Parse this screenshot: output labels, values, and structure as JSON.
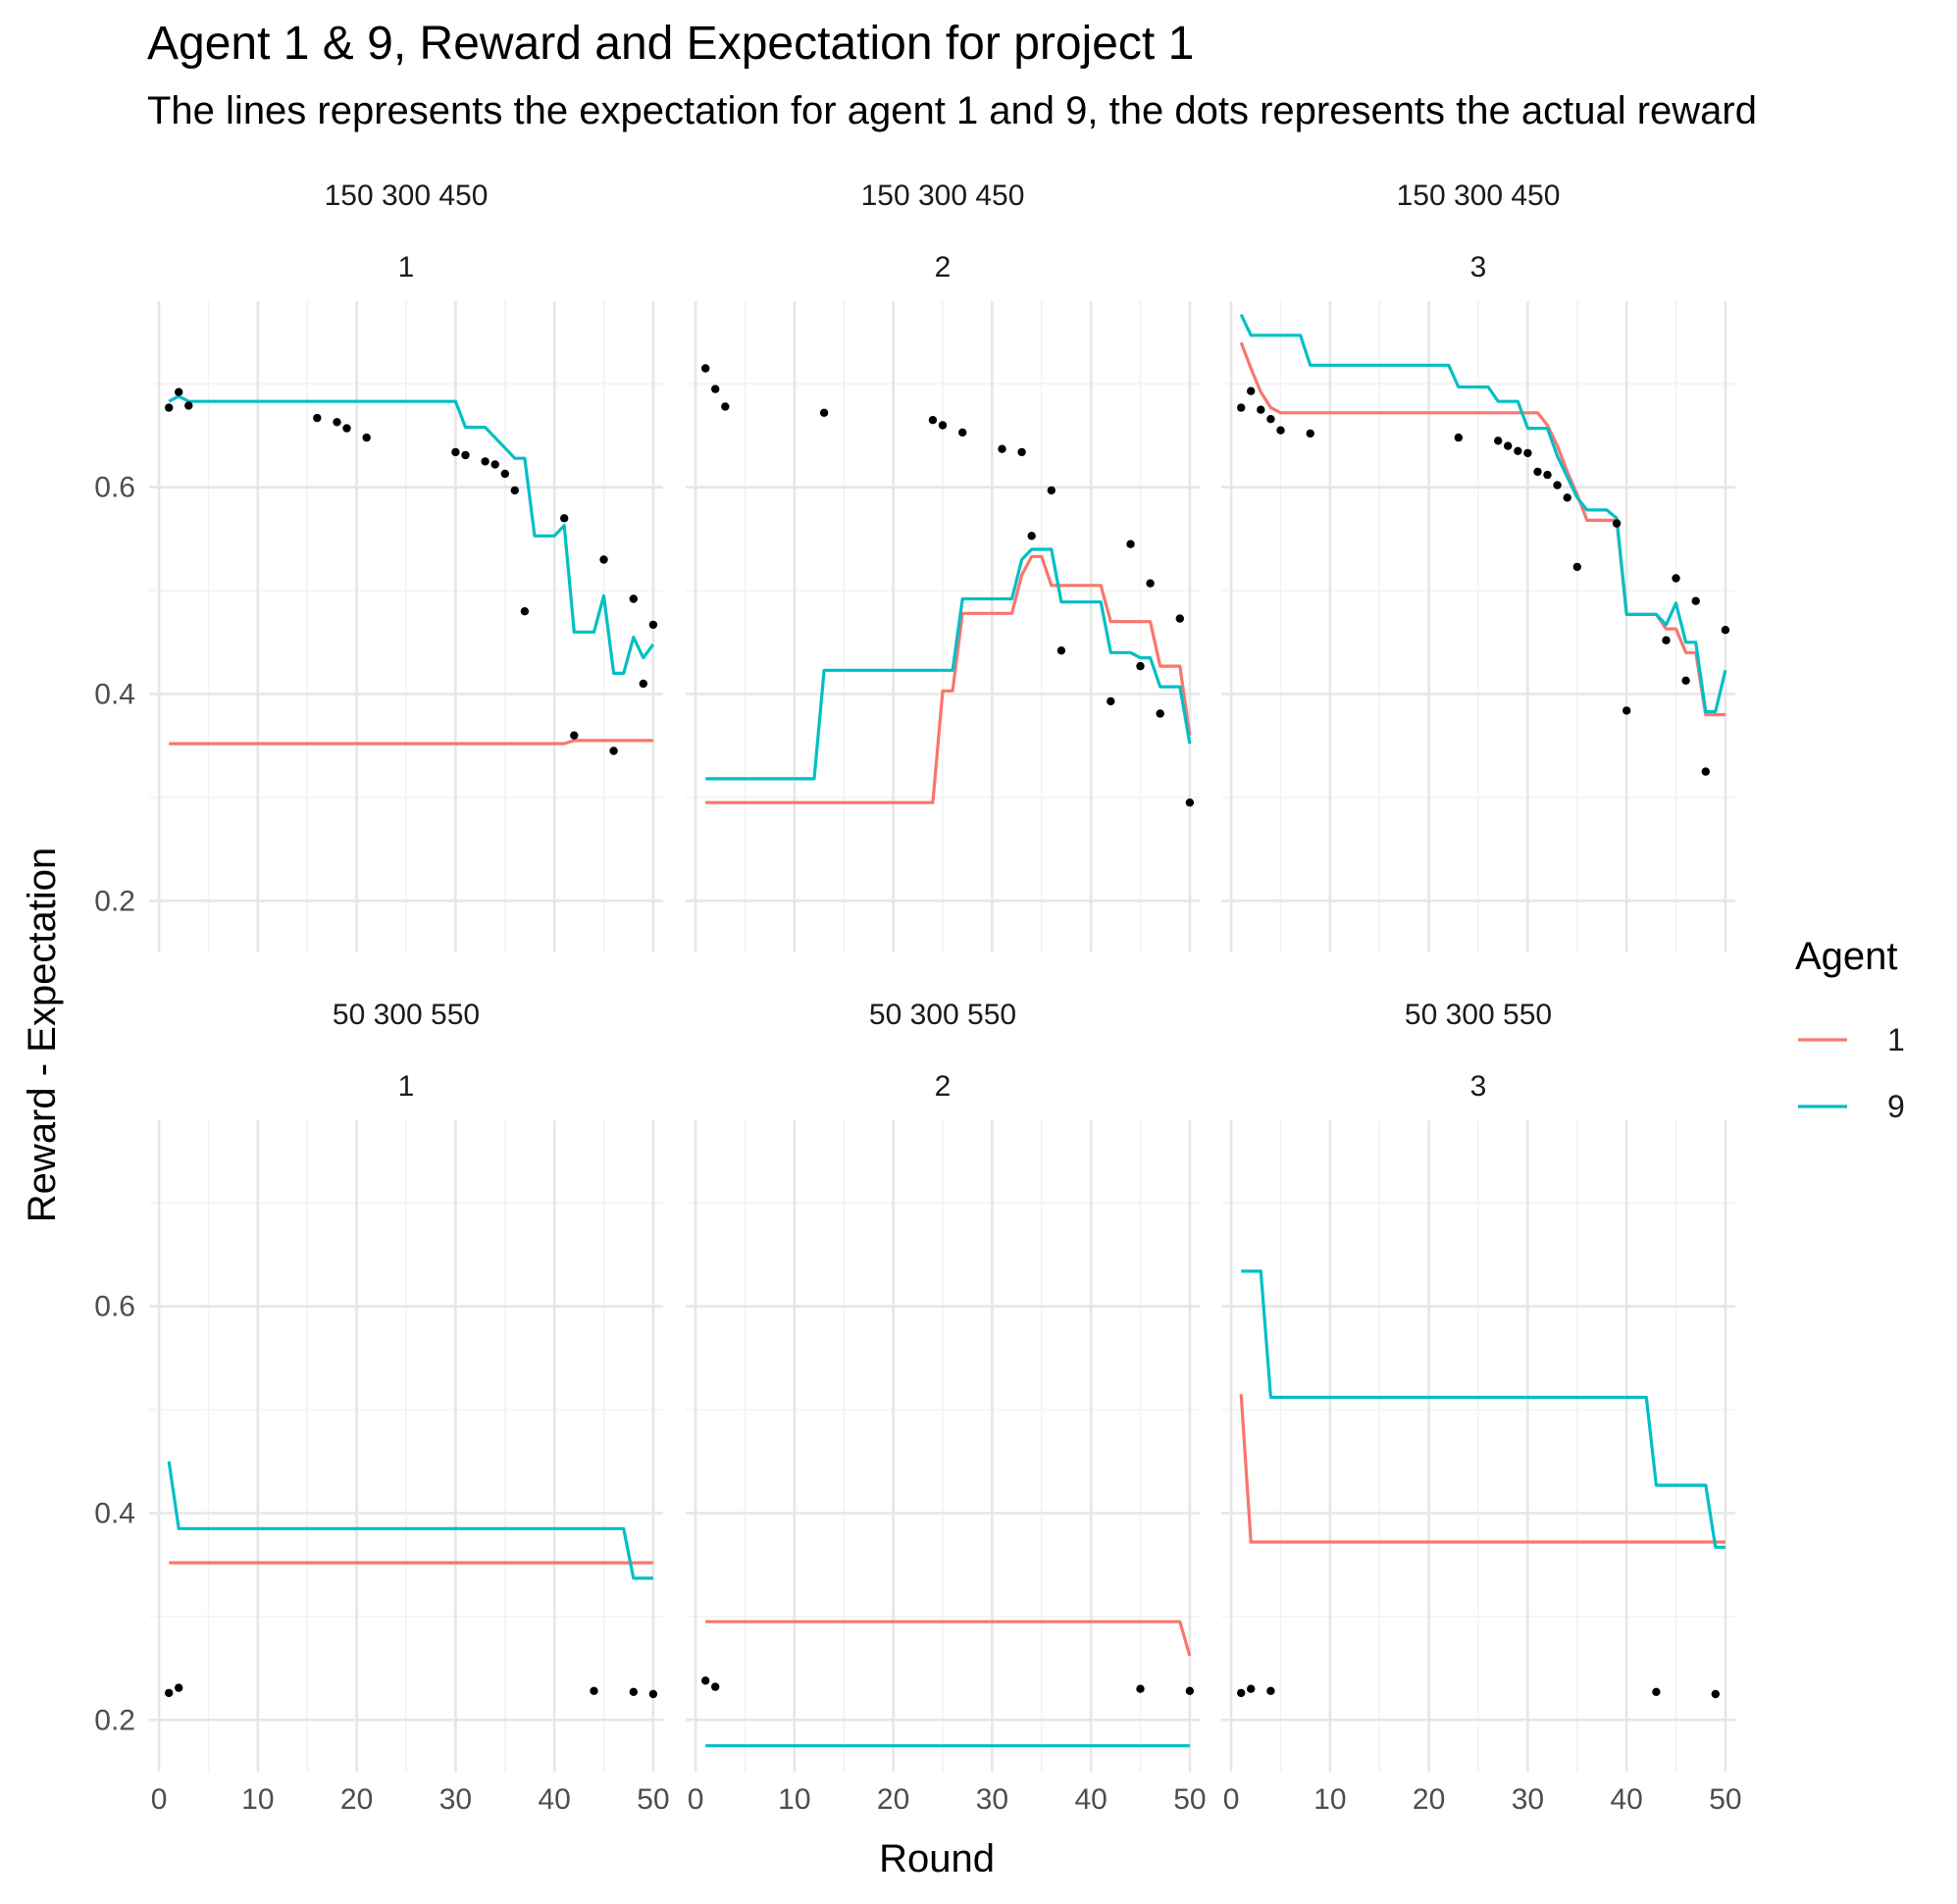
{
  "chart_data": {
    "type": "line",
    "title": "Agent 1 & 9, Reward and Expectation for project 1",
    "subtitle": "The lines represents the expectation for agent 1 and 9, the dots represents the actual reward",
    "xlabel": "Round",
    "ylabel": "Reward - Expectation",
    "xlim": [
      -1,
      51
    ],
    "ylim": [
      0.15,
      0.78
    ],
    "x_ticks": [
      0,
      10,
      20,
      30,
      40,
      50
    ],
    "x_tick_labels": [
      "0",
      "10",
      "20",
      "30",
      "40",
      "50"
    ],
    "y_ticks": [
      0.2,
      0.4,
      0.6
    ],
    "y_tick_labels": [
      "0.2",
      "0.4",
      "0.6"
    ],
    "grid": true,
    "legend": {
      "title": "Agent",
      "position": "right",
      "entries": [
        {
          "label": "1",
          "color": "#F8766D"
        },
        {
          "label": "9",
          "color": "#00BFC4"
        }
      ]
    },
    "panels": [
      {
        "row_strip": "150 300 450",
        "col_strip": "1",
        "series": [
          {
            "name": "1",
            "color": "#F8766D",
            "x": [
              1,
              41,
              42,
              50
            ],
            "y": [
              0.352,
              0.352,
              0.355,
              0.355
            ]
          },
          {
            "name": "9",
            "color": "#00BFC4",
            "x": [
              1,
              2,
              3,
              30,
              31,
              33,
              35,
              36,
              37,
              38,
              40,
              41,
              42,
              44,
              45,
              46,
              47,
              48,
              49,
              50
            ],
            "y": [
              0.683,
              0.688,
              0.683,
              0.683,
              0.658,
              0.658,
              0.638,
              0.628,
              0.628,
              0.553,
              0.553,
              0.563,
              0.46,
              0.46,
              0.495,
              0.42,
              0.42,
              0.455,
              0.435,
              0.448
            ]
          }
        ],
        "points": {
          "x": [
            1,
            2,
            3,
            16,
            18,
            19,
            21,
            30,
            31,
            33,
            34,
            35,
            36,
            37,
            41,
            42,
            45,
            46,
            48,
            49,
            50
          ],
          "y": [
            0.677,
            0.692,
            0.679,
            0.667,
            0.663,
            0.657,
            0.648,
            0.634,
            0.631,
            0.625,
            0.622,
            0.613,
            0.597,
            0.48,
            0.57,
            0.36,
            0.53,
            0.345,
            0.492,
            0.41,
            0.467
          ]
        }
      },
      {
        "row_strip": "150 300 450",
        "col_strip": "2",
        "series": [
          {
            "name": "1",
            "color": "#F8766D",
            "x": [
              1,
              24,
              25,
              26,
              27,
              32,
              33,
              34,
              35,
              36,
              37,
              41,
              42,
              46,
              47,
              49,
              50
            ],
            "y": [
              0.295,
              0.295,
              0.403,
              0.403,
              0.478,
              0.478,
              0.515,
              0.533,
              0.533,
              0.505,
              0.505,
              0.505,
              0.47,
              0.47,
              0.427,
              0.427,
              0.36
            ]
          },
          {
            "name": "9",
            "color": "#00BFC4",
            "x": [
              1,
              12,
              13,
              26,
              27,
              32,
              33,
              34,
              35,
              36,
              37,
              41,
              42,
              44,
              45,
              46,
              47,
              49,
              50
            ],
            "y": [
              0.318,
              0.318,
              0.423,
              0.423,
              0.492,
              0.492,
              0.53,
              0.54,
              0.54,
              0.54,
              0.489,
              0.489,
              0.44,
              0.44,
              0.435,
              0.435,
              0.407,
              0.407,
              0.352
            ]
          }
        ],
        "points": {
          "x": [
            1,
            2,
            3,
            13,
            24,
            25,
            27,
            31,
            33,
            34,
            36,
            37,
            42,
            44,
            45,
            46,
            47,
            49,
            50
          ],
          "y": [
            0.715,
            0.695,
            0.678,
            0.672,
            0.665,
            0.66,
            0.653,
            0.637,
            0.634,
            0.553,
            0.597,
            0.442,
            0.393,
            0.545,
            0.427,
            0.507,
            0.381,
            0.473,
            0.295
          ]
        }
      },
      {
        "row_strip": "150 300 450",
        "col_strip": "3",
        "series": [
          {
            "name": "1",
            "color": "#F8766D",
            "x": [
              1,
              2,
              3,
              4,
              5,
              31,
              32,
              33,
              34,
              35,
              36,
              39,
              40,
              43,
              44,
              45,
              46,
              47,
              48,
              50
            ],
            "y": [
              0.74,
              0.715,
              0.692,
              0.677,
              0.672,
              0.672,
              0.66,
              0.64,
              0.615,
              0.593,
              0.568,
              0.568,
              0.477,
              0.477,
              0.463,
              0.463,
              0.44,
              0.44,
              0.38,
              0.38
            ]
          },
          {
            "name": "9",
            "color": "#00BFC4",
            "x": [
              1,
              2,
              7,
              8,
              22,
              23,
              26,
              27,
              29,
              30,
              32,
              33,
              35,
              36,
              38,
              39,
              40,
              43,
              44,
              45,
              46,
              47,
              48,
              49,
              50
            ],
            "y": [
              0.767,
              0.747,
              0.747,
              0.718,
              0.718,
              0.697,
              0.697,
              0.683,
              0.683,
              0.657,
              0.657,
              0.63,
              0.59,
              0.578,
              0.578,
              0.57,
              0.477,
              0.477,
              0.467,
              0.488,
              0.45,
              0.45,
              0.383,
              0.383,
              0.423
            ]
          }
        ],
        "points": {
          "x": [
            1,
            2,
            3,
            4,
            5,
            8,
            23,
            27,
            28,
            29,
            30,
            31,
            32,
            33,
            34,
            35,
            39,
            40,
            44,
            45,
            46,
            47,
            48,
            50
          ],
          "y": [
            0.677,
            0.693,
            0.675,
            0.666,
            0.655,
            0.652,
            0.648,
            0.645,
            0.64,
            0.635,
            0.633,
            0.615,
            0.612,
            0.602,
            0.59,
            0.523,
            0.565,
            0.384,
            0.452,
            0.512,
            0.413,
            0.49,
            0.325,
            0.462
          ]
        }
      },
      {
        "row_strip": "50 300 550",
        "col_strip": "1",
        "series": [
          {
            "name": "1",
            "color": "#F8766D",
            "x": [
              1,
              50
            ],
            "y": [
              0.352,
              0.352
            ]
          },
          {
            "name": "9",
            "color": "#00BFC4",
            "x": [
              1,
              2,
              47,
              48,
              50
            ],
            "y": [
              0.45,
              0.385,
              0.385,
              0.337,
              0.337
            ]
          }
        ],
        "points": {
          "x": [
            1,
            2,
            44,
            48,
            50
          ],
          "y": [
            0.226,
            0.231,
            0.228,
            0.227,
            0.225
          ]
        }
      },
      {
        "row_strip": "50 300 550",
        "col_strip": "2",
        "series": [
          {
            "name": "1",
            "color": "#F8766D",
            "x": [
              1,
              49,
              50
            ],
            "y": [
              0.295,
              0.295,
              0.262
            ]
          },
          {
            "name": "9",
            "color": "#00BFC4",
            "x": [
              1,
              50
            ],
            "y": [
              0.175,
              0.175
            ]
          }
        ],
        "points": {
          "x": [
            1,
            2,
            45,
            50
          ],
          "y": [
            0.238,
            0.232,
            0.23,
            0.228
          ]
        }
      },
      {
        "row_strip": "50 300 550",
        "col_strip": "3",
        "series": [
          {
            "name": "1",
            "color": "#F8766D",
            "x": [
              1,
              2,
              50
            ],
            "y": [
              0.515,
              0.372,
              0.372
            ]
          },
          {
            "name": "9",
            "color": "#00BFC4",
            "x": [
              1,
              3,
              4,
              42,
              43,
              48,
              49,
              50
            ],
            "y": [
              0.634,
              0.634,
              0.512,
              0.512,
              0.427,
              0.427,
              0.367,
              0.367
            ]
          }
        ],
        "points": {
          "x": [
            1,
            2,
            4,
            43,
            49
          ],
          "y": [
            0.226,
            0.23,
            0.228,
            0.227,
            0.225
          ]
        }
      }
    ]
  }
}
